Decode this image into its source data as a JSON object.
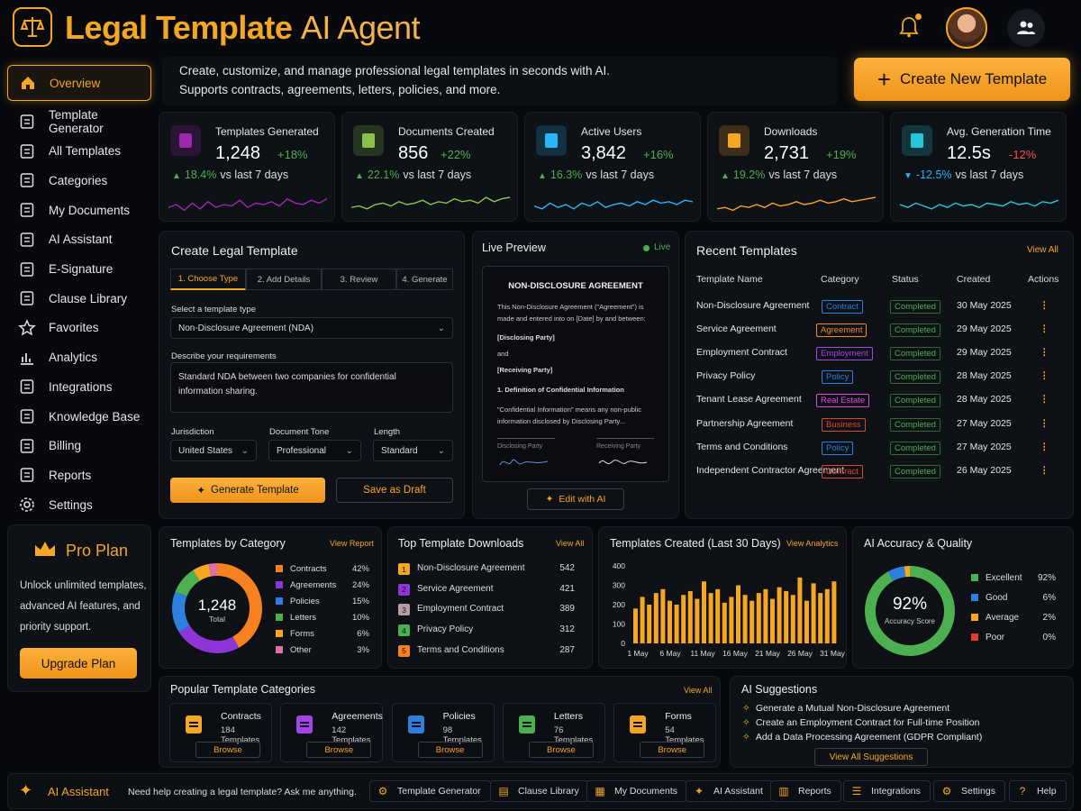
{
  "header": {
    "title_main": "Legal Template",
    "title_accent": "AI Agent"
  },
  "sidebar": {
    "items": [
      {
        "label": "Overview",
        "icon": "home-icon"
      },
      {
        "label": "Template Generator",
        "icon": "robot-icon"
      },
      {
        "label": "All Templates",
        "icon": "document-icon"
      },
      {
        "label": "Categories",
        "icon": "layers-icon"
      },
      {
        "label": "My Documents",
        "icon": "folder-icon"
      },
      {
        "label": "AI Assistant",
        "icon": "assistant-icon"
      },
      {
        "label": "E-Signature",
        "icon": "signature-icon"
      },
      {
        "label": "Clause Library",
        "icon": "library-icon"
      },
      {
        "label": "Favorites",
        "icon": "star-icon"
      },
      {
        "label": "Analytics",
        "icon": "chart-icon"
      },
      {
        "label": "Integrations",
        "icon": "plug-icon"
      },
      {
        "label": "Knowledge Base",
        "icon": "book-icon"
      },
      {
        "label": "Billing",
        "icon": "card-icon"
      },
      {
        "label": "Reports",
        "icon": "report-icon"
      },
      {
        "label": "Settings",
        "icon": "gear-icon"
      }
    ],
    "pro": {
      "title": "Pro Plan",
      "line1": "Unlock unlimited templates,",
      "line2": "advanced AI features, and",
      "line3": "priority support.",
      "button": "Upgrade Plan"
    }
  },
  "intro": {
    "line1": "Create, customize, and manage professional legal templates in seconds with AI.",
    "line2": "Supports contracts, agreements, letters, policies, and more."
  },
  "create_button": "Create New Template",
  "stats": [
    {
      "label": "Templates Generated",
      "value": "1,248",
      "pct": "+18%",
      "cmp": "18.4%",
      "cmp_text": "vs last 7 days",
      "dir": "up",
      "color": "#9c27b0"
    },
    {
      "label": "Documents Created",
      "value": "856",
      "pct": "+22%",
      "cmp": "22.1%",
      "cmp_text": "vs last 7 days",
      "dir": "up",
      "color": "#8bc34a"
    },
    {
      "label": "Active Users",
      "value": "3,842",
      "pct": "+16%",
      "cmp": "16.3%",
      "cmp_text": "vs last 7 days",
      "dir": "up",
      "color": "#29b6f6"
    },
    {
      "label": "Downloads",
      "value": "2,731",
      "pct": "+19%",
      "cmp": "19.2%",
      "cmp_text": "vs last 7 days",
      "dir": "up",
      "color": "#f5a623"
    },
    {
      "label": "Avg. Generation Time",
      "value": "12.5s",
      "pct": "-12%",
      "cmp": "-12.5%",
      "cmp_text": "vs last 7 days",
      "dir": "down",
      "color": "#26c6da"
    }
  ],
  "create_form": {
    "title": "Create Legal Template",
    "steps": [
      "1. Choose Type",
      "2. Add Details",
      "3. Review",
      "4. Generate"
    ],
    "type_label": "Select a template type",
    "type_value": "Non-Disclosure Agreement (NDA)",
    "req_label": "Describe your requirements",
    "req_value": "Standard NDA between two companies for confidential information sharing.",
    "jur_label": "Jurisdiction",
    "jur_value": "United States",
    "tone_label": "Document Tone",
    "tone_value": "Professional",
    "len_label": "Length",
    "len_value": "Standard",
    "generate": "Generate Template",
    "draft": "Save as Draft"
  },
  "preview": {
    "title": "Live Preview",
    "live": "Live",
    "doc_title": "NON-DISCLOSURE AGREEMENT",
    "p1": "This Non-Disclosure Agreement (\"Agreement\") is made and entered into on [Date] by and between:",
    "party1": "[Disclosing Party]",
    "and": "and",
    "party2": "[Receiving Party]",
    "section": "1. Definition of Confidential Information",
    "p2": "\"Confidential Information\" means any non-public information disclosed by Disclosing Party...",
    "sig1": "Disclosing Party",
    "sig2": "Receiving Party",
    "edit": "Edit with AI"
  },
  "recent": {
    "title": "Recent Templates",
    "view_all": "View All",
    "headers": [
      "Template Name",
      "Category",
      "Status",
      "Created",
      "Actions"
    ],
    "rows": [
      {
        "name": "Non-Disclosure Agreement",
        "cat": "Contract",
        "color": "#2f7fe0",
        "status": "Completed",
        "date": "30 May 2025"
      },
      {
        "name": "Service Agreement",
        "cat": "Agreement",
        "color": "#f08a24",
        "status": "Completed",
        "date": "29 May 2025"
      },
      {
        "name": "Employment Contract",
        "cat": "Employment",
        "color": "#a344e6",
        "status": "Completed",
        "date": "29 May 2025"
      },
      {
        "name": "Privacy Policy",
        "cat": "Policy",
        "color": "#2f7fe0",
        "status": "Completed",
        "date": "28 May 2025"
      },
      {
        "name": "Tenant Lease Agreement",
        "cat": "Real Estate",
        "color": "#e04ad0",
        "status": "Completed",
        "date": "28 May 2025"
      },
      {
        "name": "Partnership Agreement",
        "cat": "Business",
        "color": "#e0452f",
        "status": "Completed",
        "date": "27 May 2025"
      },
      {
        "name": "Terms and Conditions",
        "cat": "Policy",
        "color": "#2f7fe0",
        "status": "Completed",
        "date": "27 May 2025"
      },
      {
        "name": "Independent Contractor Agreement",
        "cat": "Contract",
        "color": "#e0452f",
        "status": "Completed",
        "date": "26 May 2025"
      }
    ]
  },
  "by_category": {
    "title": "Templates by Category",
    "link": "View Report",
    "center_value": "1,248",
    "center_label": "Total",
    "items": [
      {
        "name": "Contracts",
        "pct": "42%",
        "value": 42,
        "color": "#f5811f"
      },
      {
        "name": "Agreements",
        "pct": "24%",
        "value": 24,
        "color": "#8e35d8"
      },
      {
        "name": "Policies",
        "pct": "15%",
        "value": 15,
        "color": "#2f7fe0"
      },
      {
        "name": "Letters",
        "pct": "10%",
        "value": 10,
        "color": "#4caf50"
      },
      {
        "name": "Forms",
        "pct": "6%",
        "value": 6,
        "color": "#f5a623"
      },
      {
        "name": "Other",
        "pct": "3%",
        "value": 3,
        "color": "#e06fa8"
      }
    ]
  },
  "top_downloads": {
    "title": "Top Template Downloads",
    "link": "View All",
    "items": [
      {
        "rank": "1",
        "name": "Non-Disclosure Agreement",
        "count": "542",
        "color": "#f5a623"
      },
      {
        "rank": "2",
        "name": "Service Agreement",
        "count": "421",
        "color": "#8e35d8"
      },
      {
        "rank": "3",
        "name": "Employment Contract",
        "count": "389",
        "color": "#b0a0a0"
      },
      {
        "rank": "4",
        "name": "Privacy Policy",
        "count": "312",
        "color": "#4caf50"
      },
      {
        "rank": "5",
        "name": "Terms and Conditions",
        "count": "287",
        "color": "#f5811f"
      }
    ]
  },
  "created_chart": {
    "title": "Templates Created (Last 30 Days)",
    "link": "View Analytics"
  },
  "chart_data": {
    "type": "bar",
    "title": "Templates Created (Last 30 Days)",
    "x_tick_labels": [
      "1 May",
      "6 May",
      "11 May",
      "16 May",
      "21 May",
      "26 May",
      "31 May"
    ],
    "y_ticks": [
      "400",
      "300",
      "200",
      "100",
      "0"
    ],
    "ylim": [
      0,
      400
    ],
    "values": [
      180,
      240,
      200,
      260,
      280,
      220,
      200,
      250,
      270,
      230,
      320,
      260,
      280,
      210,
      240,
      300,
      250,
      220,
      260,
      280,
      230,
      290,
      270,
      250,
      340,
      220,
      310,
      260,
      280,
      320
    ],
    "color": "#f5a623"
  },
  "accuracy": {
    "title": "AI Accuracy & Quality",
    "value": "92%",
    "label": "Accuracy Score",
    "items": [
      {
        "name": "Excellent",
        "pct": "92%",
        "value": 92,
        "color": "#4caf50"
      },
      {
        "name": "Good",
        "pct": "6%",
        "value": 6,
        "color": "#2f7fe0"
      },
      {
        "name": "Average",
        "pct": "2%",
        "value": 2,
        "color": "#f5a623"
      },
      {
        "name": "Poor",
        "pct": "0%",
        "value": 0,
        "color": "#e53935"
      }
    ]
  },
  "popular": {
    "title": "Popular Template Categories",
    "link": "View All",
    "items": [
      {
        "name": "Contracts",
        "count": "184 Templates",
        "browse": "Browse",
        "icon": "file-icon",
        "color": "#f5a623"
      },
      {
        "name": "Agreements",
        "count": "142 Templates",
        "browse": "Browse",
        "icon": "handshake-icon",
        "color": "#a344e6"
      },
      {
        "name": "Policies",
        "count": "98 Templates",
        "browse": "Browse",
        "icon": "shield-icon",
        "color": "#2f7fe0"
      },
      {
        "name": "Letters",
        "count": "76 Templates",
        "browse": "Browse",
        "icon": "envelope-icon",
        "color": "#4caf50"
      },
      {
        "name": "Forms",
        "count": "54 Templates",
        "browse": "Browse",
        "icon": "form-icon",
        "color": "#f5a623"
      }
    ]
  },
  "suggestions": {
    "title": "AI Suggestions",
    "items": [
      "Generate a Mutual Non-Disclosure Agreement",
      "Create an Employment Contract for Full-time Position",
      "Add a Data Processing Agreement (GDPR Compliant)"
    ],
    "button": "View All Suggestions"
  },
  "bottombar": {
    "label": "AI Assistant",
    "prompt": "Need help creating a legal template? Ask me anything.",
    "buttons": [
      "Template Generator",
      "Clause Library",
      "My Documents",
      "AI Assistant",
      "Reports",
      "Integrations",
      "Settings",
      "Help"
    ]
  }
}
